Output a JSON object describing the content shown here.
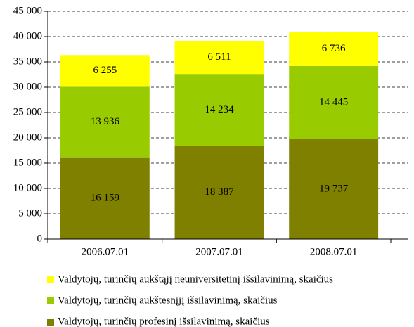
{
  "chart_data": {
    "type": "stacked-bar",
    "categories": [
      "2006.07.01",
      "2007.07.01",
      "2008.07.01"
    ],
    "series": [
      {
        "name": "Valdytojų, turinčių profesinį išsilavinimą, skaičius",
        "color": "#808000",
        "values": [
          16159,
          18387,
          19737
        ],
        "value_labels": [
          "16 159",
          "18 387",
          "19 737"
        ]
      },
      {
        "name": "Valdytojų, turinčių aukštesnįjį išsilavinimą, skaičius",
        "color": "#99cc00",
        "values": [
          13936,
          14234,
          14445
        ],
        "value_labels": [
          "13 936",
          "14 234",
          "14 445"
        ]
      },
      {
        "name": "Valdytojų, turinčių aukštąjį neuniversitetinį išsilavinimą, skaičius",
        "color": "#ffff00",
        "values": [
          6255,
          6511,
          6736
        ],
        "value_labels": [
          "6 255",
          "6 511",
          "6 736"
        ]
      }
    ],
    "ylim": [
      0,
      45000
    ],
    "yticks": [
      0,
      {
        "value": 5000,
        "label": "5 000"
      },
      {
        "value": 10000,
        "label": "10 000"
      },
      {
        "value": 15000,
        "label": "15 000"
      },
      {
        "value": 20000,
        "label": "20 000"
      },
      {
        "value": 25000,
        "label": "25 000"
      },
      {
        "value": 30000,
        "label": "30 000"
      },
      {
        "value": 35000,
        "label": "35 000"
      },
      {
        "value": 40000,
        "label": "40 000"
      },
      {
        "value": 45000,
        "label": "45 000"
      }
    ],
    "grid": true,
    "legend": "bottom"
  }
}
